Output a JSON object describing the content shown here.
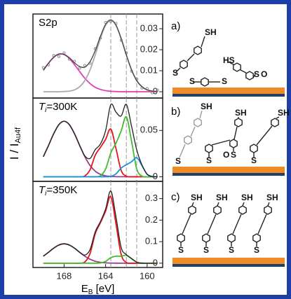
{
  "ylabel": {
    "main": "I / I",
    "sub": "Au4f"
  },
  "chart_data": [
    {
      "type": "line",
      "annotation": {
        "main": "S2p"
      },
      "x": [
        170,
        169.5,
        169,
        168.5,
        168,
        167.5,
        167,
        166.5,
        166,
        165.5,
        165,
        164.5,
        164,
        163.5,
        163,
        162.5,
        162,
        161.5,
        161,
        160.5,
        160,
        159.5,
        159
      ],
      "xlim": [
        171,
        158.5
      ],
      "ylim": [
        -0.003,
        0.037
      ],
      "yticks": [
        0,
        0.01,
        0.02,
        0.03
      ],
      "vlines": [
        163.5,
        162,
        161
      ],
      "series": [
        {
          "style": "points",
          "color": "#777777",
          "values": [
            0.0115,
            0.0128,
            0.0172,
            0.0168,
            0.0185,
            0.0155,
            0.0145,
            0.0112,
            0.0125,
            0.0135,
            0.0205,
            0.0255,
            0.033,
            0.0335,
            0.0325,
            0.0245,
            0.0185,
            0.0098,
            0.006,
            0.0018,
            0.0015,
            -0.0005,
            0.0008
          ]
        },
        {
          "style": "line",
          "color": "#e040b0",
          "values": [
            0.0102,
            0.0136,
            0.0164,
            0.0179,
            0.0177,
            0.0159,
            0.0129,
            0.0096,
            0.0064,
            0.0039,
            0.0021,
            0.0011,
            0.0005,
            0.0002,
            0.0001,
            0,
            0,
            0,
            0,
            0,
            0,
            0,
            0
          ]
        },
        {
          "style": "line",
          "color": "#aaaaaa",
          "values": [
            0,
            0,
            0,
            0,
            0.0001,
            0.0003,
            0.0009,
            0.0024,
            0.0053,
            0.0104,
            0.0175,
            0.0253,
            0.0316,
            0.034,
            0.0316,
            0.0253,
            0.0175,
            0.0104,
            0.0053,
            0.0024,
            0.0009,
            0.0003,
            0.0001
          ]
        },
        {
          "style": "line",
          "color": "#444444",
          "values": [
            0.0102,
            0.0136,
            0.0164,
            0.0179,
            0.0178,
            0.0162,
            0.0138,
            0.012,
            0.0117,
            0.0143,
            0.0196,
            0.0264,
            0.0321,
            0.0342,
            0.0317,
            0.0253,
            0.0175,
            0.0104,
            0.0053,
            0.0024,
            0.0009,
            0.0003,
            0.0001
          ]
        }
      ]
    },
    {
      "type": "line",
      "annotation": {
        "main": "T",
        "sub": "i",
        "rest": "=300K"
      },
      "x": [
        170,
        169.5,
        169,
        168.5,
        168,
        167.5,
        167,
        166.5,
        166,
        165.5,
        165,
        164.5,
        164,
        163.5,
        163,
        162.5,
        162,
        161.5,
        161,
        160.5,
        160,
        159.5,
        159
      ],
      "xlim": [
        171,
        158.5
      ],
      "ylim": [
        -0.005,
        0.085
      ],
      "yticks": [
        0,
        0.05
      ],
      "vlines": [
        163.5,
        162,
        161
      ],
      "series": [
        {
          "style": "line",
          "color": "#9b3d8f",
          "values": [
            0.0216,
            0.0338,
            0.0465,
            0.0563,
            0.06,
            0.0563,
            0.0465,
            0.0338,
            0.0216,
            0.0122,
            0.006,
            0.0026,
            0.001,
            0.0004,
            0.0001,
            0,
            0,
            0,
            0,
            0,
            0,
            0,
            0
          ]
        },
        {
          "style": "line",
          "color": "#e8141e",
          "values": [
            0,
            0,
            0,
            0,
            0,
            0,
            0,
            0,
            0.0009,
            0.0075,
            0.0232,
            0.0317,
            0.0404,
            0.0515,
            0.0304,
            0.0068,
            0.0006,
            0,
            0,
            0,
            0,
            0,
            0
          ]
        },
        {
          "style": "line",
          "color": "#3cbf2a",
          "values": [
            0,
            0,
            0,
            0,
            0,
            0,
            0,
            0,
            0,
            0,
            0,
            0.001,
            0.0083,
            0.0257,
            0.0362,
            0.0495,
            0.0647,
            0.0383,
            0.0085,
            0.0007,
            0,
            0,
            0
          ]
        },
        {
          "style": "line",
          "color": "#1e8ee0",
          "values": [
            0,
            0,
            0,
            0,
            0,
            0,
            0,
            0,
            0,
            0,
            0,
            0,
            0,
            0.0004,
            0.0031,
            0.0094,
            0.0129,
            0.0162,
            0.0206,
            0.0121,
            0.0027,
            0.0002,
            0
          ]
        },
        {
          "style": "line",
          "color": "#222222",
          "values": [
            0.0216,
            0.0338,
            0.0465,
            0.0563,
            0.06,
            0.0563,
            0.0465,
            0.0338,
            0.0225,
            0.0197,
            0.0292,
            0.0353,
            0.0497,
            0.078,
            0.0698,
            0.0657,
            0.0782,
            0.0545,
            0.0291,
            0.0128,
            0.0027,
            0.0002,
            0
          ]
        }
      ]
    },
    {
      "type": "line",
      "annotation": {
        "main": "T",
        "sub": "i",
        "rest": "=350K"
      },
      "x": [
        170,
        169.5,
        169,
        168.5,
        168,
        167.5,
        167,
        166.5,
        166,
        165.5,
        165,
        164.5,
        164,
        163.5,
        163,
        162.5,
        162,
        161.5,
        161,
        160.5,
        160,
        159.5,
        159
      ],
      "xlim": [
        171,
        158.5
      ],
      "ylim": [
        -0.02,
        0.38
      ],
      "yticks": [
        0,
        0.1,
        0.2,
        0.3
      ],
      "xticks": [
        168,
        164,
        160
      ],
      "xlabel": {
        "main": "E",
        "sub": "B",
        "rest": " [eV]"
      },
      "vlines": [
        163.5,
        162,
        161
      ],
      "series": [
        {
          "style": "line",
          "color": "#9b3d8f",
          "values": [
            0.0324,
            0.0507,
            0.0698,
            0.0845,
            0.09,
            0.0845,
            0.0698,
            0.0507,
            0.0324,
            0.0183,
            0.009,
            0.0039,
            0.0015,
            0.0006,
            0.0002,
            0,
            0,
            0,
            0,
            0,
            0,
            0,
            0
          ]
        },
        {
          "style": "line",
          "color": "#e8141e",
          "values": [
            0,
            0,
            0,
            0,
            0,
            0,
            0,
            0,
            0.0054,
            0.0445,
            0.1369,
            0.1882,
            0.2421,
            0.309,
            0.1826,
            0.0405,
            0.0033,
            0,
            0,
            0,
            0,
            0,
            0
          ]
        },
        {
          "style": "line",
          "color": "#3cbf2a",
          "values": [
            0,
            0,
            0,
            0,
            0,
            0,
            0,
            0,
            0,
            0,
            0,
            0.001,
            0.0083,
            0.0254,
            0.0324,
            0.0325,
            0.0367,
            0.0212,
            0.0047,
            0.0004,
            0,
            0,
            0
          ]
        },
        {
          "style": "line",
          "color": "#222222",
          "values": [
            0.0324,
            0.0507,
            0.0698,
            0.0845,
            0.09,
            0.0845,
            0.0698,
            0.0507,
            0.0378,
            0.0628,
            0.1459,
            0.1931,
            0.2519,
            0.335,
            0.2152,
            0.073,
            0.04,
            0.0212,
            0.0047,
            0.0004,
            0,
            0,
            0
          ]
        }
      ]
    }
  ],
  "schematics": [
    {
      "label": "a)",
      "texts": [
        "SH",
        "HS",
        "S",
        "S",
        "S",
        "S",
        "O"
      ]
    },
    {
      "label": "b)",
      "texts": [
        "SH",
        "S",
        "O",
        "S",
        "SH",
        "SH",
        "S",
        "S"
      ]
    },
    {
      "label": "c)",
      "texts": [
        "SH",
        "SH",
        "SH",
        "SH",
        "S",
        "S",
        "S",
        "S"
      ]
    }
  ]
}
